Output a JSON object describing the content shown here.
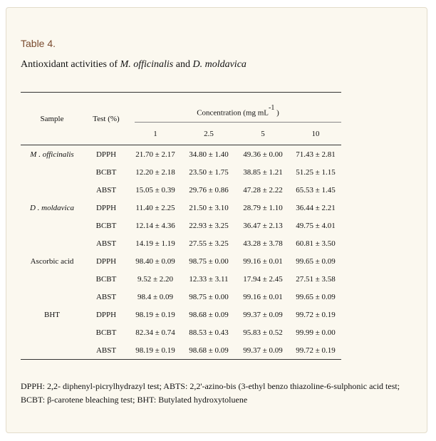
{
  "caption": {
    "label": "Table 4.",
    "title_prefix": "Antioxidant activities of ",
    "species_1": "M. officinalis",
    "title_and": " and ",
    "species_2": "D. moldavica"
  },
  "table": {
    "headers": {
      "sample": "Sample",
      "test": "Test (%)",
      "concentration": "Concentration (mg mL",
      "concentration_sup": "-1",
      "concentration_close": ")",
      "concentrations": [
        "1",
        "2.5",
        "5",
        "10"
      ]
    },
    "rows": [
      {
        "sample": "M . officinalis",
        "test": "DPPH",
        "values": [
          "21.70 ± 2.17",
          "34.80 ± 1.40",
          "49.36 ± 0.00",
          "71.43 ± 2.81"
        ]
      },
      {
        "sample": "",
        "test": "BCBT",
        "values": [
          "12.20 ± 2.18",
          "23.50 ± 1.75",
          "38.85 ± 1.21",
          "51.25 ± 1.15"
        ]
      },
      {
        "sample": "",
        "test": "ABST",
        "values": [
          "15.05 ± 0.39",
          "29.76 ± 0.86",
          "47.28 ± 2.22",
          "65.53 ± 1.45"
        ]
      },
      {
        "sample": "D . moldavica",
        "test": "DPPH",
        "values": [
          "11.40 ± 2.25",
          "21.50 ± 3.10",
          "28.79 ± 1.10",
          "36.44 ± 2.21"
        ]
      },
      {
        "sample": "",
        "test": "BCBT",
        "values": [
          "12.14 ± 4.36",
          "22.93 ± 3.25",
          "36.47 ± 2.13",
          "49.75 ± 4.01"
        ]
      },
      {
        "sample": "",
        "test": "ABST",
        "values": [
          "14.19 ± 1.19",
          "27.55 ± 3.25",
          "43.28 ± 3.78",
          "60.81 ± 3.50"
        ]
      },
      {
        "sample": "Ascorbic acid",
        "test": "DPPH",
        "values": [
          "98.40 ± 0.09",
          "98.75 ± 0.00",
          "99.16 ± 0.01",
          "99.65 ± 0.09"
        ]
      },
      {
        "sample": "",
        "test": "BCBT",
        "values": [
          "9.52 ± 2.20",
          "12.33 ± 3.11",
          "17.94 ± 2.45",
          "27.51 ± 3.58"
        ]
      },
      {
        "sample": "",
        "test": "ABST",
        "values": [
          "98.4 ± 0.09",
          "98.75 ± 0.00",
          "99.16 ± 0.01",
          "99.65 ± 0.09"
        ]
      },
      {
        "sample": "BHT",
        "test": "DPPH",
        "values": [
          "98.19 ± 0.19",
          "98.68 ± 0.09",
          "99.37 ± 0.09",
          "99.72 ± 0.19"
        ]
      },
      {
        "sample": "",
        "test": "BCBT",
        "values": [
          "82.34 ± 0.74",
          "88.53 ± 0.43",
          "95.83 ± 0.52",
          "99.99 ± 0.00"
        ]
      },
      {
        "sample": "",
        "test": "ABST",
        "values": [
          "98.19 ± 0.19",
          "98.68 ± 0.09",
          "99.37 ± 0.09",
          "99.72 ± 0.19"
        ]
      }
    ]
  },
  "footnote": "DPPH: 2,2- diphenyl-picrylhydrazyl test; ABTS: 2,2'-azino-bis (3-ethyl benzo thiazoline-6-sulphonic acid test; BCBT: β-carotene bleaching test; BHT: Butylated hydroxytoluene"
}
